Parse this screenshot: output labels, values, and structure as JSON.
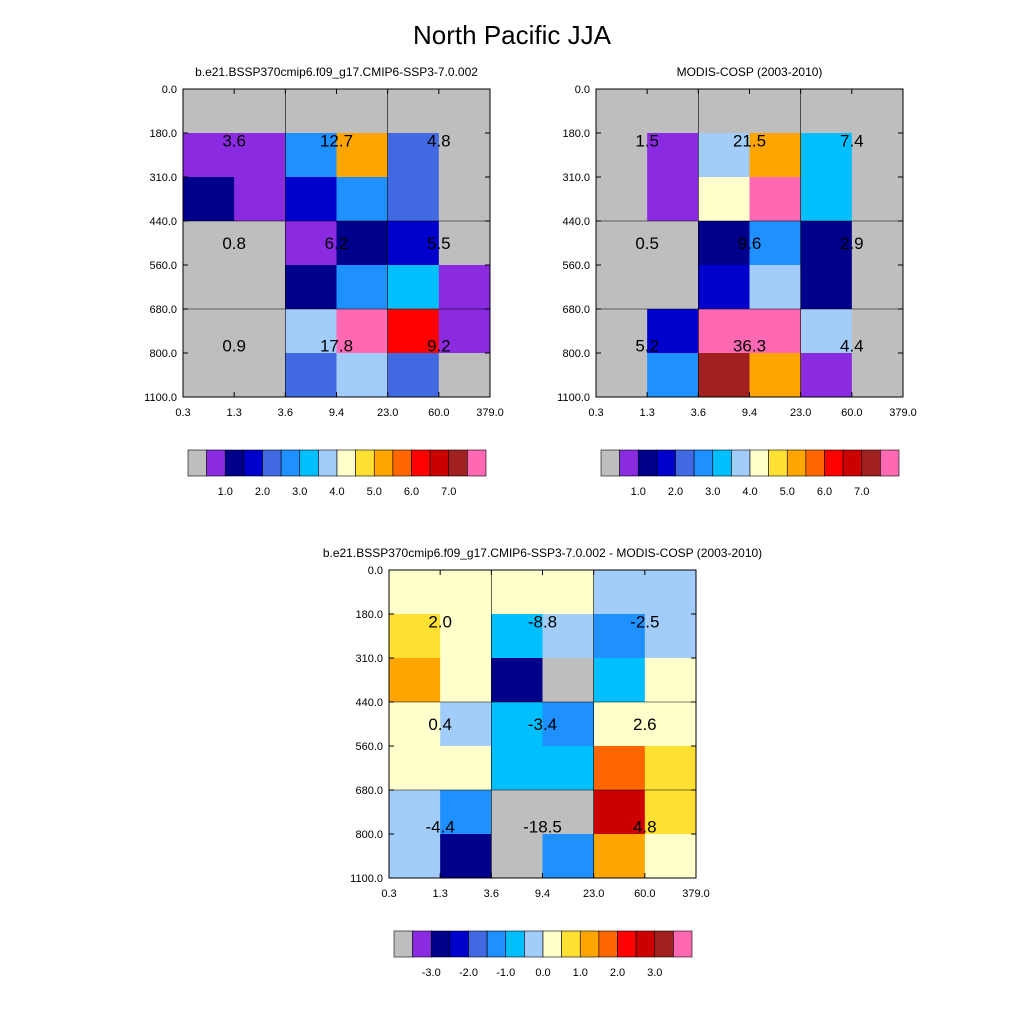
{
  "title": "North Pacific JJA",
  "palette": [
    "#BEBEBE",
    "#8A2BE2",
    "#00008B",
    "#0000CD",
    "#4169E1",
    "#1E90FF",
    "#00BFFF",
    "#A2CDFA",
    "#FFFFCC",
    "#FFE033",
    "#FFA500",
    "#FF6600",
    "#FF0000",
    "#CC0000",
    "#A02020",
    "#FF69B4"
  ],
  "chart_data": [
    {
      "type": "heatmap",
      "title": "b.e21.BSSP370cmip6.f09_g17.CMIP6-SSP3-7.0.002",
      "x_tick_labels": [
        "0.3",
        "1.3",
        "3.6",
        "9.4",
        "23.0",
        "60.0",
        "379.0"
      ],
      "y_tick_labels": [
        "0.0",
        "180.0",
        "310.0",
        "440.0",
        "560.0",
        "680.0",
        "800.0",
        "1100.0"
      ],
      "cell_color_index": [
        [
          0,
          0,
          0,
          0,
          0,
          0
        ],
        [
          1,
          1,
          5,
          10,
          4,
          0
        ],
        [
          2,
          1,
          3,
          5,
          4,
          0
        ],
        [
          0,
          0,
          1,
          2,
          3,
          0
        ],
        [
          0,
          0,
          2,
          5,
          6,
          1
        ],
        [
          0,
          0,
          7,
          15,
          12,
          1
        ],
        [
          0,
          0,
          4,
          7,
          4,
          0
        ]
      ],
      "block_labels": [
        [
          "3.6",
          "12.7",
          "4.8"
        ],
        [
          "0.8",
          "6.2",
          "5.5"
        ],
        [
          "0.9",
          "17.8",
          "9.2"
        ]
      ],
      "colorbar_tick_labels": [
        "1.0",
        "2.0",
        "3.0",
        "4.0",
        "5.0",
        "6.0",
        "7.0"
      ]
    },
    {
      "type": "heatmap",
      "title": "MODIS-COSP (2003-2010)",
      "x_tick_labels": [
        "0.3",
        "1.3",
        "3.6",
        "9.4",
        "23.0",
        "60.0",
        "379.0"
      ],
      "y_tick_labels": [
        "0.0",
        "180.0",
        "310.0",
        "440.0",
        "560.0",
        "680.0",
        "800.0",
        "1100.0"
      ],
      "cell_color_index": [
        [
          0,
          0,
          0,
          0,
          0,
          0
        ],
        [
          0,
          1,
          7,
          10,
          6,
          0
        ],
        [
          0,
          1,
          8,
          15,
          6,
          0
        ],
        [
          0,
          0,
          2,
          5,
          2,
          0
        ],
        [
          0,
          0,
          3,
          7,
          2,
          0
        ],
        [
          0,
          3,
          15,
          15,
          7,
          0
        ],
        [
          0,
          5,
          14,
          10,
          1,
          0
        ]
      ],
      "block_labels": [
        [
          "1.5",
          "21.5",
          "7.4"
        ],
        [
          "0.5",
          "9.6",
          "2.9"
        ],
        [
          "5.2",
          "36.3",
          "4.4"
        ]
      ],
      "colorbar_tick_labels": [
        "1.0",
        "2.0",
        "3.0",
        "4.0",
        "5.0",
        "6.0",
        "7.0"
      ]
    },
    {
      "type": "heatmap",
      "title": "b.e21.BSSP370cmip6.f09_g17.CMIP6-SSP3-7.0.002 - MODIS-COSP (2003-2010)",
      "x_tick_labels": [
        "0.3",
        "1.3",
        "3.6",
        "9.4",
        "23.0",
        "60.0",
        "379.0"
      ],
      "y_tick_labels": [
        "0.0",
        "180.0",
        "310.0",
        "440.0",
        "560.0",
        "680.0",
        "800.0",
        "1100.0"
      ],
      "cell_color_index": [
        [
          8,
          8,
          8,
          8,
          7,
          7
        ],
        [
          9,
          8,
          6,
          7,
          5,
          7
        ],
        [
          10,
          8,
          2,
          0,
          6,
          8
        ],
        [
          8,
          7,
          6,
          5,
          8,
          8
        ],
        [
          8,
          8,
          6,
          6,
          11,
          9
        ],
        [
          7,
          5,
          0,
          0,
          13,
          9
        ],
        [
          7,
          2,
          0,
          5,
          10,
          8
        ]
      ],
      "block_labels": [
        [
          "2.0",
          "-8.8",
          "-2.5"
        ],
        [
          "0.4",
          "-3.4",
          "2.6"
        ],
        [
          "-4.4",
          "-18.5",
          "4.8"
        ]
      ],
      "colorbar_tick_labels": [
        "-3.0",
        "-2.0",
        "-1.0",
        "0.0",
        "1.0",
        "2.0",
        "3.0"
      ]
    }
  ]
}
